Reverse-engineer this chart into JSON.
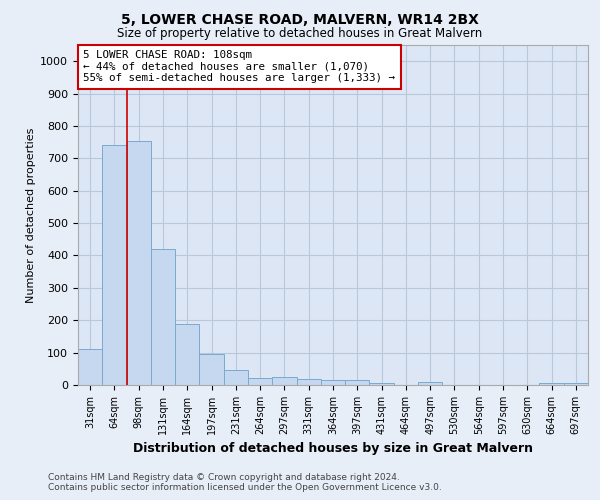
{
  "title1": "5, LOWER CHASE ROAD, MALVERN, WR14 2BX",
  "title2": "Size of property relative to detached houses in Great Malvern",
  "xlabel": "Distribution of detached houses by size in Great Malvern",
  "ylabel": "Number of detached properties",
  "categories": [
    "31sqm",
    "64sqm",
    "98sqm",
    "131sqm",
    "164sqm",
    "197sqm",
    "231sqm",
    "264sqm",
    "297sqm",
    "331sqm",
    "364sqm",
    "397sqm",
    "431sqm",
    "464sqm",
    "497sqm",
    "530sqm",
    "564sqm",
    "597sqm",
    "630sqm",
    "664sqm",
    "697sqm"
  ],
  "values": [
    110,
    740,
    755,
    420,
    187,
    97,
    45,
    22,
    25,
    18,
    15,
    15,
    7,
    0,
    8,
    0,
    0,
    0,
    0,
    7,
    7
  ],
  "bar_color": "#c5d8f0",
  "bar_edge_color": "#7aaad0",
  "red_line_x": 1.5,
  "annotation_line1": "5 LOWER CHASE ROAD: 108sqm",
  "annotation_line2": "← 44% of detached houses are smaller (1,070)",
  "annotation_line3": "55% of semi-detached houses are larger (1,333) →",
  "ylim": [
    0,
    1050
  ],
  "yticks": [
    0,
    100,
    200,
    300,
    400,
    500,
    600,
    700,
    800,
    900,
    1000
  ],
  "footer1": "Contains HM Land Registry data © Crown copyright and database right 2024.",
  "footer2": "Contains public sector information licensed under the Open Government Licence v3.0.",
  "bg_color": "#e8eef8",
  "plot_bg_color": "#dce6f5",
  "grid_color": "#b8c8dc"
}
